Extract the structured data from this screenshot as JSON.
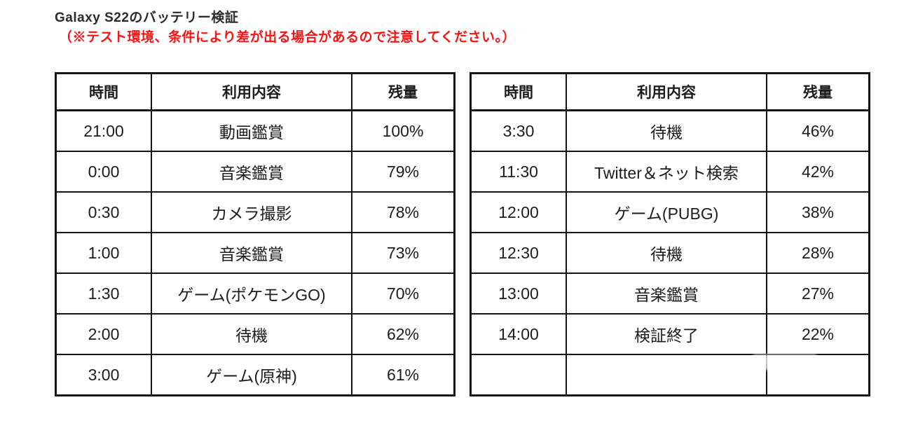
{
  "page": {
    "title": "Galaxy S22のバッテリー検証",
    "note": "（※テスト環境、条件により差が出る場合があるので注意してください。）",
    "note_color": "#fa1212",
    "text_color": "#1c1c1c",
    "border_color": "#141414",
    "background_color": "#ffffff"
  },
  "tables": [
    {
      "id": "battery-log-first-half",
      "headers": [
        "時間",
        "利用内容",
        "残量"
      ],
      "rows": [
        [
          "21:00",
          "動画鑑賞",
          "100%"
        ],
        [
          "0:00",
          "音楽鑑賞",
          "79%"
        ],
        [
          "0:30",
          "カメラ撮影",
          "78%"
        ],
        [
          "1:00",
          "音楽鑑賞",
          "73%"
        ],
        [
          "1:30",
          "ゲーム(ポケモンGO)",
          "70%"
        ],
        [
          "2:00",
          "待機",
          "62%"
        ],
        [
          "3:00",
          "ゲーム(原神)",
          "61%"
        ]
      ]
    },
    {
      "id": "battery-log-second-half",
      "headers": [
        "時間",
        "利用内容",
        "残量"
      ],
      "rows": [
        [
          "3:30",
          "待機",
          "46%"
        ],
        [
          "11:30",
          "Twitter＆ネット検索",
          "42%"
        ],
        [
          "12:00",
          "ゲーム(PUBG)",
          "38%"
        ],
        [
          "12:30",
          "待機",
          "28%"
        ],
        [
          "13:00",
          "音楽鑑賞",
          "27%"
        ],
        [
          "14:00",
          "検証終了",
          "22%"
        ],
        [
          "",
          "",
          ""
        ]
      ]
    }
  ]
}
